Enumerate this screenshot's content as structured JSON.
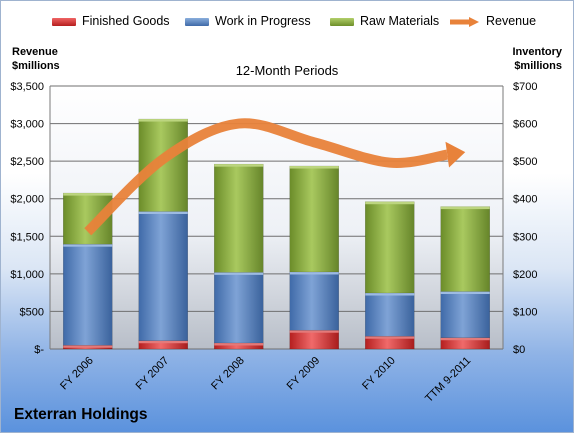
{
  "chart_data": {
    "type": "bar",
    "stacked": true,
    "title": "12-Month Periods",
    "left_axis_title": [
      "Revenue",
      "$millions"
    ],
    "right_axis_title": [
      "Inventory",
      "$millions"
    ],
    "company": "Exterran Holdings",
    "categories": [
      "FY 2006",
      "FY 2007",
      "FY 2008",
      "FY 2009",
      "FY 2010",
      "TTM 9-2011"
    ],
    "ylim_left": [
      0,
      3500
    ],
    "ylim_right": [
      0,
      700
    ],
    "left_ticks": [
      "$-",
      "$500",
      "$1,000",
      "$1,500",
      "$2,000",
      "$2,500",
      "$3,000",
      "$3,500"
    ],
    "right_ticks": [
      "$0",
      "$100",
      "$200",
      "$300",
      "$400",
      "$500",
      "$600",
      "$700"
    ],
    "grid": true,
    "legend_position": "top",
    "series": [
      {
        "name": "Finished Goods",
        "axis": "right",
        "color": "#d93636",
        "values": [
          10,
          22,
          16,
          50,
          34,
          30
        ]
      },
      {
        "name": "Work in Progress",
        "axis": "right",
        "color": "#5d86bf",
        "values": [
          269,
          344,
          188,
          155,
          115,
          123
        ]
      },
      {
        "name": "Raw Materials",
        "axis": "right",
        "color": "#8fb144",
        "values": [
          136,
          246,
          288,
          282,
          243,
          226
        ]
      },
      {
        "name": "Revenue",
        "axis": "left",
        "type": "line",
        "color": "#e8823a",
        "values": [
          1560,
          2530,
          3000,
          2750,
          2480,
          2620
        ]
      }
    ]
  }
}
